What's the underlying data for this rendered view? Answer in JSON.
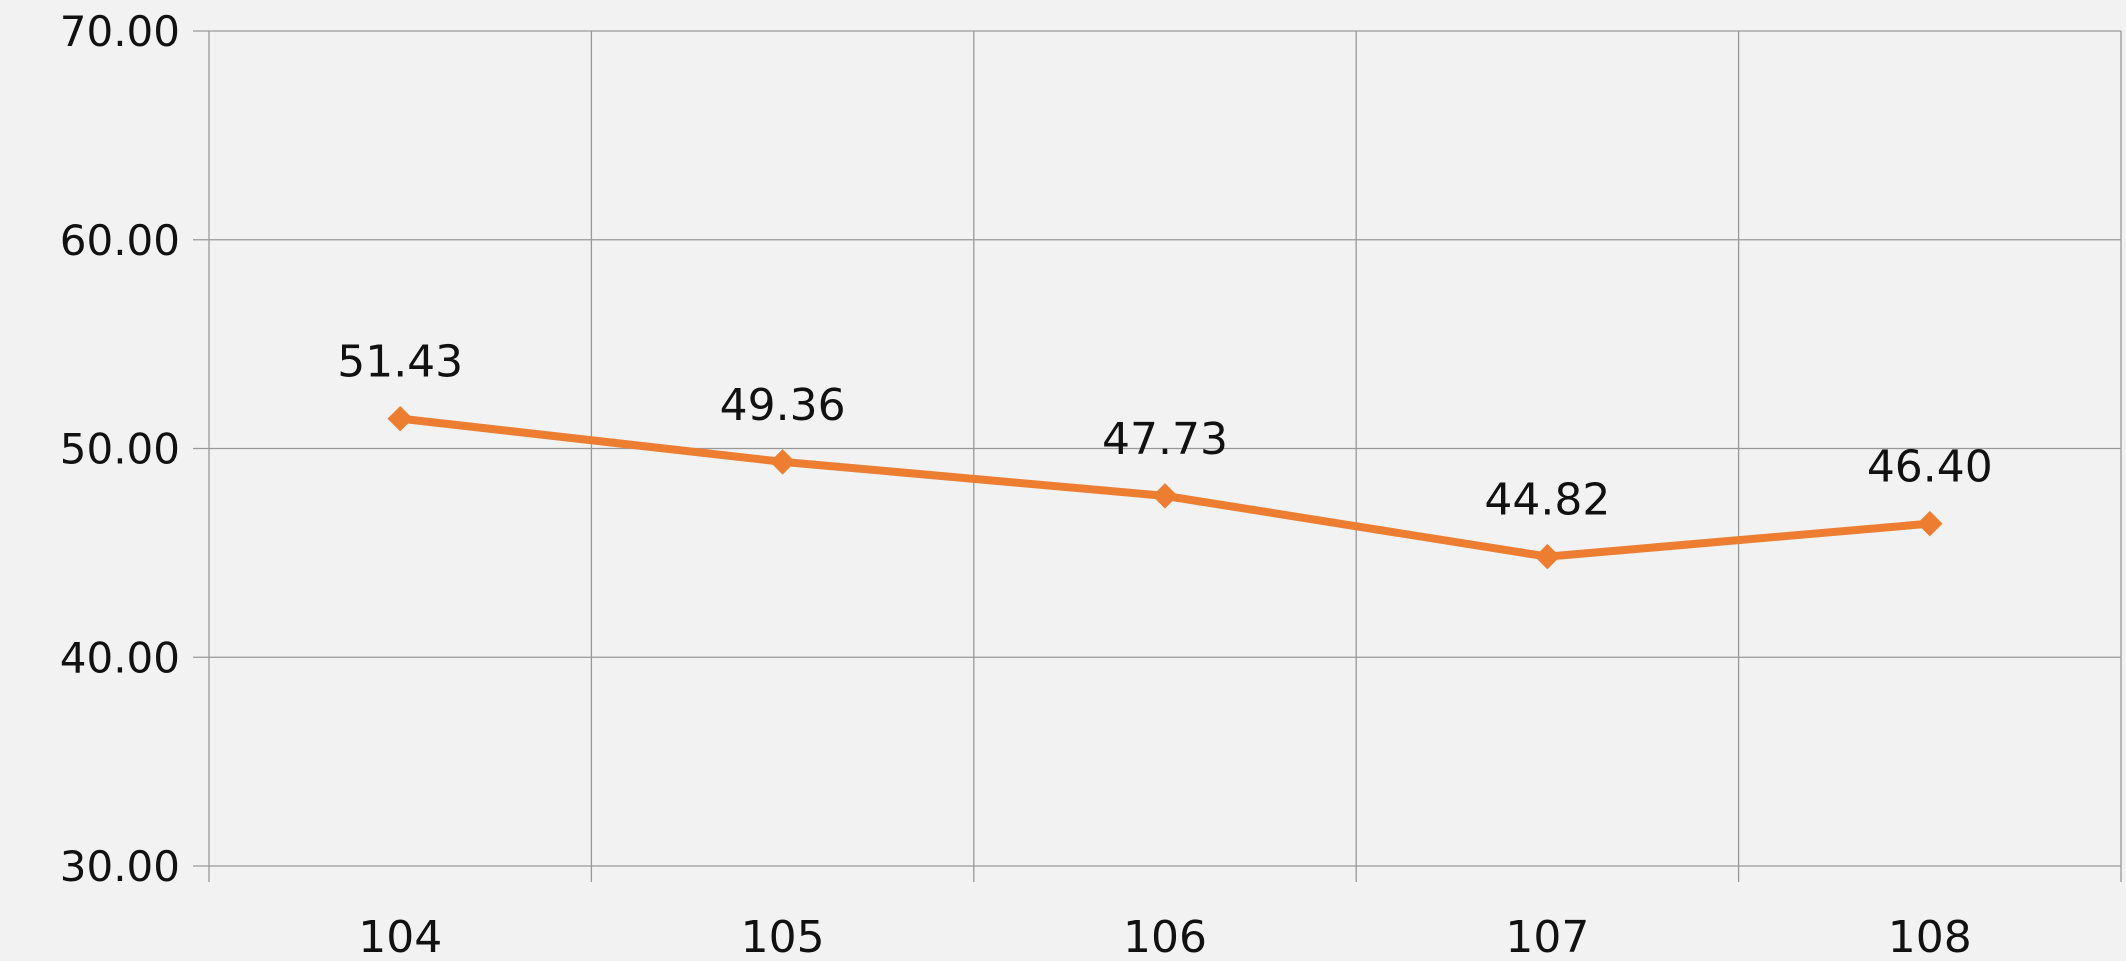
{
  "chart_data": {
    "type": "line",
    "title": "",
    "xlabel": "",
    "ylabel": "",
    "categories": [
      "104",
      "105",
      "106",
      "107",
      "108"
    ],
    "series": [
      {
        "values": [
          51.43,
          49.36,
          47.73,
          44.82,
          46.4
        ],
        "value_labels": [
          "51.43",
          "49.36",
          "47.73",
          "44.82",
          "46.40"
        ],
        "color": "#ed7d31",
        "marker": "diamond"
      }
    ],
    "ylim": [
      30,
      70
    ],
    "y_ticks": [
      70,
      60,
      50,
      40,
      30
    ],
    "y_tick_labels": [
      "70.00",
      "60.00",
      "50.00",
      "40.00",
      "30.00"
    ],
    "grid": true,
    "gridline_color": "#999999",
    "background_color": "#f2f2f2",
    "legend": "none"
  }
}
